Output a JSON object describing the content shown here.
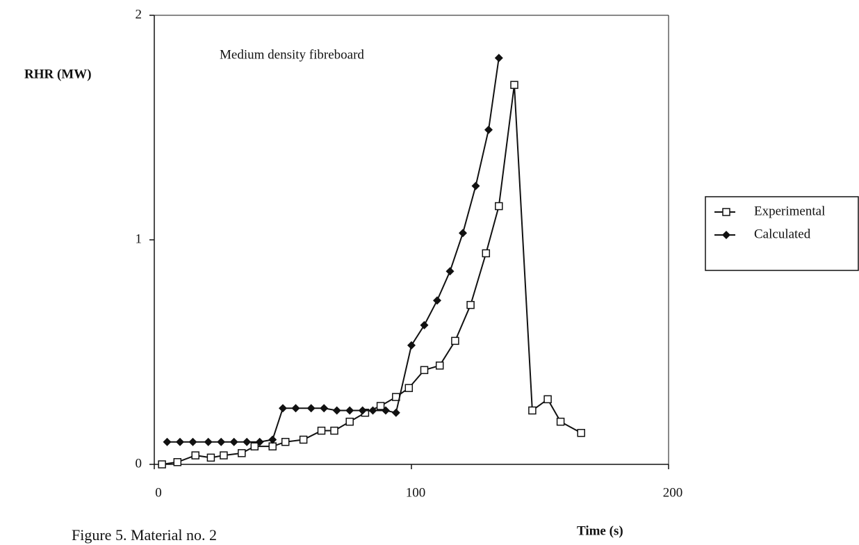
{
  "chart_data": {
    "type": "line",
    "annotation": "Medium density fibreboard",
    "y_label": "RHR (MW)",
    "x_label": "Time (s)",
    "caption": "Figure 5.  Material no. 2",
    "xlim": [
      0,
      200
    ],
    "xticks": [
      0,
      100,
      200
    ],
    "ylim": [
      0,
      2
    ],
    "yticks": [
      0,
      1,
      2
    ],
    "grid": false,
    "legend": "right",
    "series": [
      {
        "name": "Experimental",
        "color": "#111111",
        "marker": "open-square",
        "x": [
          3,
          9,
          16,
          22,
          27,
          34,
          39,
          46,
          51,
          58,
          65,
          70,
          76,
          82,
          88,
          94,
          99,
          105,
          111,
          117,
          123,
          129,
          134,
          140,
          147,
          153,
          158,
          166
        ],
        "values": [
          0,
          0.01,
          0.04,
          0.03,
          0.04,
          0.05,
          0.08,
          0.08,
          0.1,
          0.11,
          0.15,
          0.15,
          0.19,
          0.23,
          0.26,
          0.3,
          0.34,
          0.42,
          0.44,
          0.55,
          0.71,
          0.94,
          1.15,
          1.69,
          0.24,
          0.29,
          0.19,
          0.14
        ]
      },
      {
        "name": "Calculated",
        "color": "#111111",
        "marker": "filled-diamond",
        "x": [
          5,
          10,
          15,
          21,
          26,
          31,
          36,
          41,
          46,
          50,
          55,
          61,
          66,
          71,
          76,
          81,
          85,
          90,
          94,
          100,
          105,
          110,
          115,
          120,
          125,
          130,
          134
        ],
        "values": [
          0.1,
          0.1,
          0.1,
          0.1,
          0.1,
          0.1,
          0.1,
          0.1,
          0.11,
          0.25,
          0.25,
          0.25,
          0.25,
          0.24,
          0.24,
          0.24,
          0.24,
          0.24,
          0.23,
          0.53,
          0.62,
          0.73,
          0.86,
          1.03,
          1.24,
          1.49,
          1.81
        ]
      }
    ]
  }
}
